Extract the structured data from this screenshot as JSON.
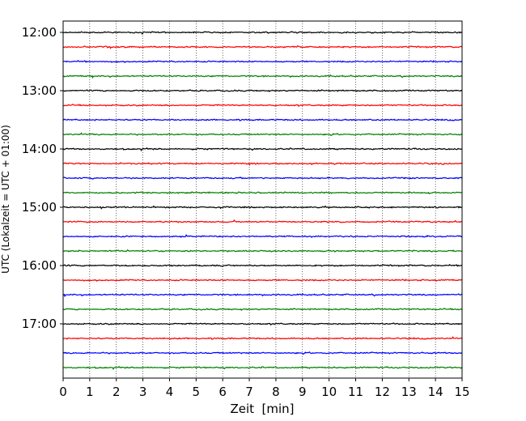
{
  "chart_data": {
    "type": "line",
    "title": "",
    "xlabel": "Zeit  [min]",
    "ylabel": "UTC (Lokalzeit = UTC + 01:00)",
    "xlim": [
      0,
      15
    ],
    "x_ticks": [
      "0",
      "1",
      "2",
      "3",
      "4",
      "5",
      "6",
      "7",
      "8",
      "9",
      "10",
      "11",
      "12",
      "13",
      "14",
      "15"
    ],
    "y_tick_labels": [
      "12:00",
      "13:00",
      "14:00",
      "15:00",
      "16:00",
      "17:00"
    ],
    "y_start": "12:00",
    "y_end": "17:45",
    "trace_interval_minutes": 15,
    "trace_color_cycle": [
      "#000000",
      "#ff0000",
      "#0000ff",
      "#008000"
    ],
    "x_grid": "dotted vertical lines at each minute",
    "traces": [
      "12:00",
      "12:15",
      "12:30",
      "12:45",
      "13:00",
      "13:15",
      "13:30",
      "13:45",
      "14:00",
      "14:15",
      "14:30",
      "14:45",
      "15:00",
      "15:15",
      "15:30",
      "15:45",
      "16:00",
      "16:15",
      "16:30",
      "16:45",
      "17:00",
      "17:15",
      "17:30",
      "17:45"
    ]
  }
}
